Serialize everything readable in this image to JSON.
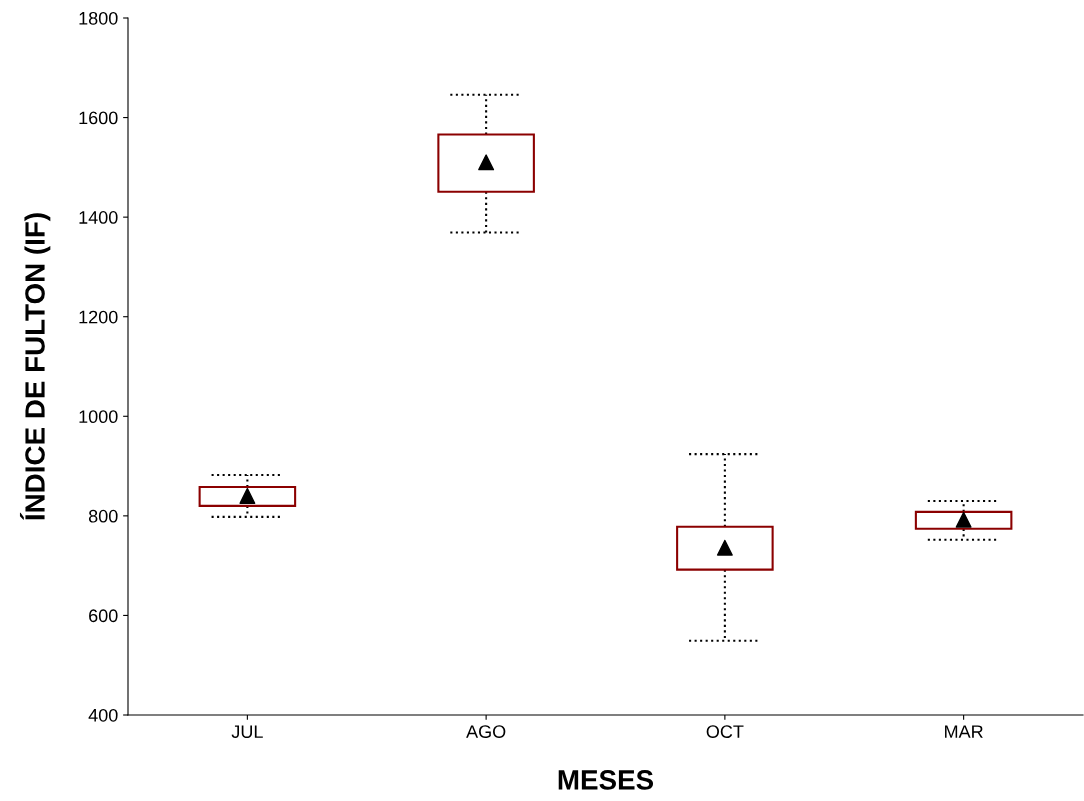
{
  "chart_data": {
    "type": "box",
    "xlabel": "MESES",
    "ylabel": "ÍNDICE DE FULTON (IF)",
    "categories": [
      "JUL",
      "AGO",
      "OCT",
      "MAR"
    ],
    "boxes": [
      {
        "low": 798,
        "q1": 820,
        "median": 840,
        "q3": 858,
        "high": 882
      },
      {
        "low": 1369,
        "q1": 1451,
        "median": 1510,
        "q3": 1566,
        "high": 1646
      },
      {
        "low": 549,
        "q1": 692,
        "median": 736,
        "q3": 778,
        "high": 924
      },
      {
        "low": 752,
        "q1": 774,
        "median": 792,
        "q3": 808,
        "high": 830
      }
    ],
    "color": "#8b0000",
    "marker": "triangle",
    "line_style": "dotted",
    "grid": false,
    "ylim": [
      400,
      1800
    ],
    "yticks": [
      400,
      600,
      800,
      1000,
      1200,
      1400,
      1600,
      1800
    ]
  }
}
